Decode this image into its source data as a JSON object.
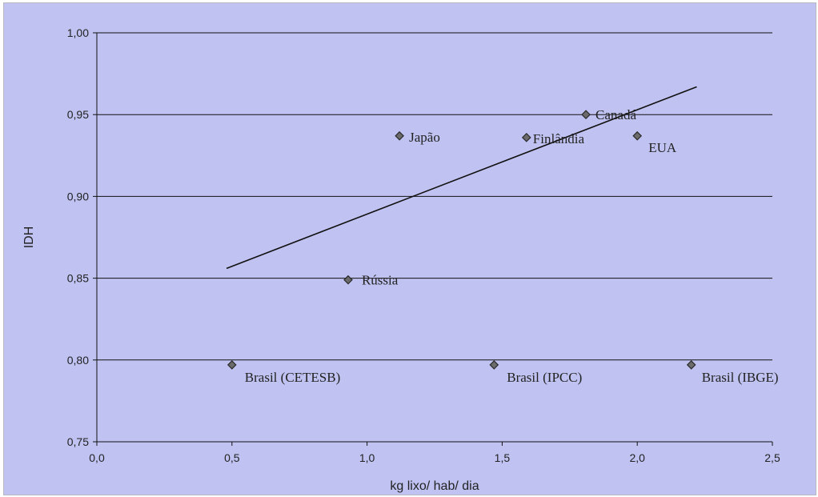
{
  "chart_data": {
    "type": "scatter",
    "title": "",
    "xlabel": "kg lixo/ hab/ dia",
    "ylabel": "IDH",
    "xlim": [
      0.0,
      2.5
    ],
    "ylim": [
      0.75,
      1.0
    ],
    "x_ticks": [
      "0,0",
      "0,5",
      "1,0",
      "1,5",
      "2,0",
      "2,5"
    ],
    "x_tick_values": [
      0.0,
      0.5,
      1.0,
      1.5,
      2.0,
      2.5
    ],
    "y_ticks": [
      "0,75",
      "0,80",
      "0,85",
      "0,90",
      "0,95",
      "1,00"
    ],
    "y_tick_values": [
      0.75,
      0.8,
      0.85,
      0.9,
      0.95,
      1.0
    ],
    "grid": "horizontal",
    "marker": "diamond",
    "marker_color": "#6b6b6b",
    "background_color": "#c0c3f2",
    "points": [
      {
        "label": "Brasil (CETESB)",
        "x": 0.5,
        "y": 0.797
      },
      {
        "label": "Brasil (IPCC)",
        "x": 1.47,
        "y": 0.797
      },
      {
        "label": "Brasil (IBGE)",
        "x": 2.2,
        "y": 0.797
      },
      {
        "label": "Rússia",
        "x": 0.93,
        "y": 0.849
      },
      {
        "label": "Japão",
        "x": 1.12,
        "y": 0.937
      },
      {
        "label": "Finlândia",
        "x": 1.59,
        "y": 0.936
      },
      {
        "label": "Canadá",
        "x": 1.81,
        "y": 0.95
      },
      {
        "label": "EUA",
        "x": 2.0,
        "y": 0.937
      }
    ],
    "trendline": {
      "type": "linear",
      "x": [
        0.48,
        2.22
      ],
      "y": [
        0.856,
        0.967
      ]
    }
  }
}
